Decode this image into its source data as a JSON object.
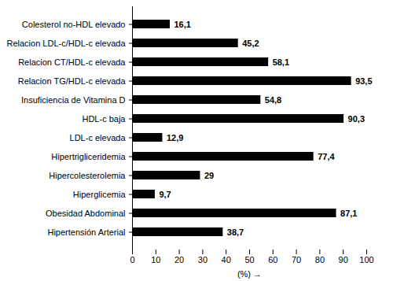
{
  "chart_data": {
    "type": "bar",
    "orientation": "horizontal",
    "categories": [
      "Colesterol no-HDL elevado",
      "Relacion LDL-c/HDL-c elevada",
      "Relacion CT/HDL-c elevada",
      "Relacion TG/HDL-c elevada",
      "Insuficiencia de Vitamina D",
      "HDL-c baja",
      "LDL-c elevada",
      "Hipertrigliceridemia",
      "Hipercolesterolemia",
      "Hiperglicemia",
      "Obesidad Abdominal",
      "Hipertensión Arterial"
    ],
    "values": [
      16.1,
      45.2,
      58.1,
      93.5,
      54.8,
      90.3,
      12.9,
      77.4,
      29,
      9.7,
      87.1,
      38.7
    ],
    "value_labels": [
      "16,1",
      "45,2",
      "58,1",
      "93,5",
      "54,8",
      "90,3",
      "12,9",
      "77,4",
      "29",
      "9,7",
      "87,1",
      "38,7"
    ],
    "data_labels": true,
    "color": "#000000",
    "x_label": "(%)",
    "xlim": [
      0,
      100
    ],
    "xticks": [
      0,
      10,
      20,
      30,
      40,
      50,
      60,
      70,
      80,
      90,
      100
    ],
    "grid": false
  }
}
